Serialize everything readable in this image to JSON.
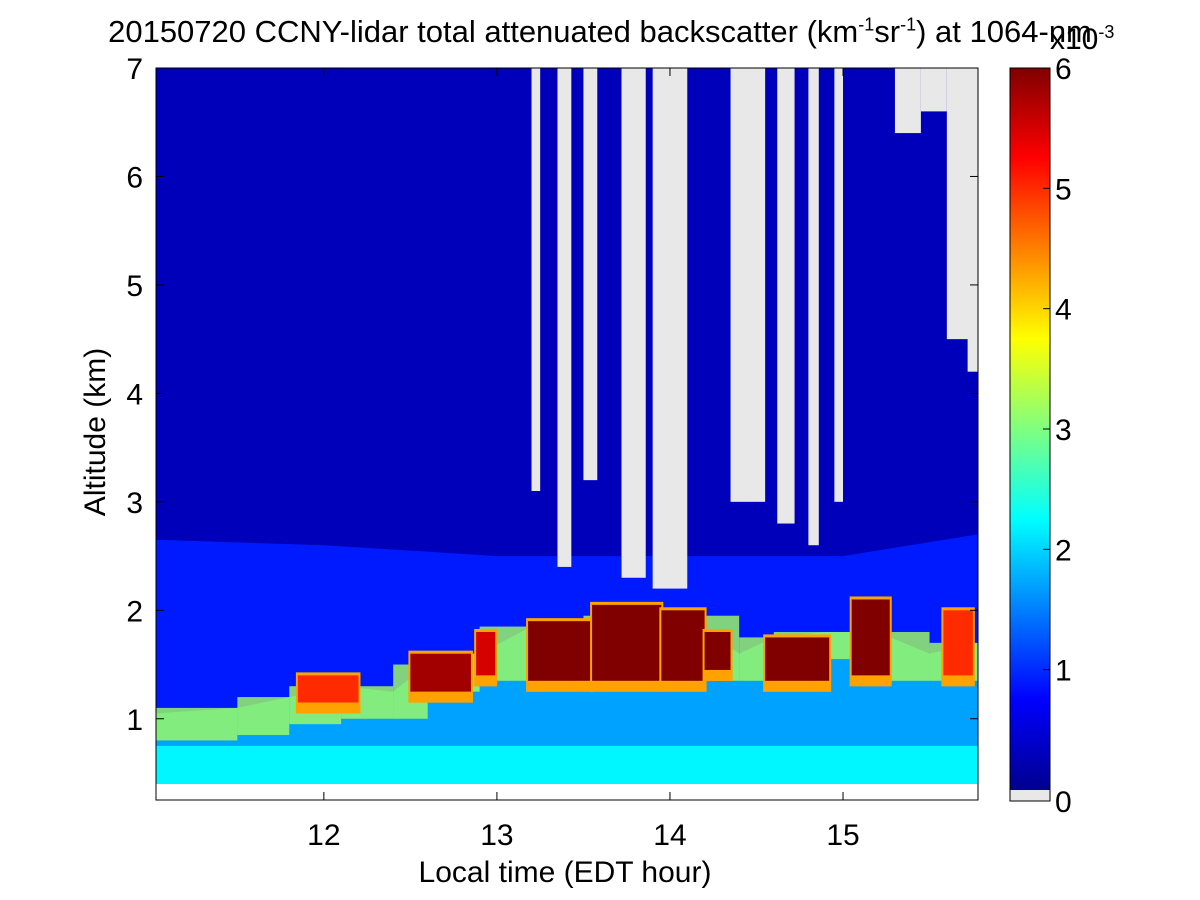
{
  "chart_data": {
    "type": "heatmap",
    "title": {
      "main": "20150720 CCNY-lidar total attenuated backscatter (km",
      "sup1": "-1",
      "mid": "sr",
      "sup2": "-1",
      "end": ") at 1064-nm"
    },
    "xlabel": "Local time (EDT hour)",
    "ylabel": "Altitude (km)",
    "xlim": [
      11.03,
      15.78
    ],
    "ylim": [
      0.38,
      7
    ],
    "x_ticks": [
      "12",
      "13",
      "14",
      "15"
    ],
    "x_tick_values": [
      12,
      13,
      14,
      15
    ],
    "y_ticks": [
      "1",
      "2",
      "3",
      "4",
      "5",
      "6",
      "7"
    ],
    "y_tick_values": [
      1,
      2,
      3,
      4,
      5,
      6,
      7
    ],
    "colorbar": {
      "ticks": [
        "0",
        "1",
        "2",
        "3",
        "4",
        "5",
        "6"
      ],
      "tick_values": [
        0,
        1,
        2,
        3,
        4,
        5,
        6
      ],
      "range": [
        0,
        6
      ],
      "exponent_base": "x10",
      "exponent_power": "-3",
      "colormap": "jet",
      "no_data_color": "#e8e8e8"
    },
    "layers": {
      "near_surface_value": 2.2,
      "boundary_layer_top_km": [
        {
          "x": 11.03,
          "y": 1.05
        },
        {
          "x": 11.5,
          "y": 1.1
        },
        {
          "x": 11.8,
          "y": 1.2
        },
        {
          "x": 12.1,
          "y": 1.3
        },
        {
          "x": 12.4,
          "y": 1.25
        },
        {
          "x": 12.6,
          "y": 1.5
        },
        {
          "x": 12.9,
          "y": 1.6
        },
        {
          "x": 13.2,
          "y": 1.85
        },
        {
          "x": 13.5,
          "y": 1.85
        },
        {
          "x": 13.8,
          "y": 1.95
        },
        {
          "x": 14.1,
          "y": 1.95
        },
        {
          "x": 14.4,
          "y": 1.6
        },
        {
          "x": 14.6,
          "y": 1.75
        },
        {
          "x": 14.9,
          "y": 1.8
        },
        {
          "x": 15.2,
          "y": 1.8
        },
        {
          "x": 15.5,
          "y": 1.6
        },
        {
          "x": 15.78,
          "y": 1.7
        }
      ],
      "aerosol_top_km": [
        {
          "x": 11.03,
          "y": 2.65
        },
        {
          "x": 12.0,
          "y": 2.6
        },
        {
          "x": 13.0,
          "y": 2.5
        },
        {
          "x": 14.0,
          "y": 2.5
        },
        {
          "x": 15.0,
          "y": 2.5
        },
        {
          "x": 15.78,
          "y": 2.7
        }
      ],
      "cloud_blocks": [
        {
          "x0": 11.85,
          "x1": 12.2,
          "y0": 1.15,
          "y1": 1.4,
          "value": 5.0
        },
        {
          "x0": 12.5,
          "x1": 12.85,
          "y0": 1.25,
          "y1": 1.6,
          "value": 5.8
        },
        {
          "x0": 12.88,
          "x1": 12.99,
          "y0": 1.4,
          "y1": 1.8,
          "value": 5.5
        },
        {
          "x0": 13.18,
          "x1": 13.55,
          "y0": 1.35,
          "y1": 1.9,
          "value": 6.0
        },
        {
          "x0": 13.55,
          "x1": 13.95,
          "y0": 1.35,
          "y1": 2.05,
          "value": 6.0
        },
        {
          "x0": 13.95,
          "x1": 14.2,
          "y0": 1.35,
          "y1": 2.0,
          "value": 6.0
        },
        {
          "x0": 14.2,
          "x1": 14.35,
          "y0": 1.45,
          "y1": 1.8,
          "value": 6.0
        },
        {
          "x0": 14.55,
          "x1": 14.92,
          "y0": 1.35,
          "y1": 1.75,
          "value": 6.0
        },
        {
          "x0": 15.05,
          "x1": 15.27,
          "y0": 1.4,
          "y1": 2.1,
          "value": 6.0
        },
        {
          "x0": 15.58,
          "x1": 15.75,
          "y0": 1.4,
          "y1": 2.0,
          "value": 5.0
        }
      ],
      "clear_sky_gaps": [
        {
          "x0": 13.2,
          "x1": 13.25,
          "y0": 3.1,
          "y1": 7.0
        },
        {
          "x0": 13.35,
          "x1": 13.43,
          "y0": 2.4,
          "y1": 7.0
        },
        {
          "x0": 13.5,
          "x1": 13.58,
          "y0": 3.2,
          "y1": 7.0
        },
        {
          "x0": 13.72,
          "x1": 13.86,
          "y0": 2.3,
          "y1": 7.0
        },
        {
          "x0": 13.9,
          "x1": 14.1,
          "y0": 2.2,
          "y1": 7.0
        },
        {
          "x0": 14.35,
          "x1": 14.55,
          "y0": 3.0,
          "y1": 7.0
        },
        {
          "x0": 14.62,
          "x1": 14.72,
          "y0": 2.8,
          "y1": 7.0
        },
        {
          "x0": 14.8,
          "x1": 14.86,
          "y0": 2.6,
          "y1": 7.0
        },
        {
          "x0": 14.95,
          "x1": 15.0,
          "y0": 3.0,
          "y1": 7.0
        },
        {
          "x0": 15.3,
          "x1": 15.45,
          "y0": 6.4,
          "y1": 7.0
        },
        {
          "x0": 15.45,
          "x1": 15.6,
          "y0": 6.6,
          "y1": 7.0
        },
        {
          "x0": 15.6,
          "x1": 15.75,
          "y0": 4.5,
          "y1": 7.0
        },
        {
          "x0": 15.72,
          "x1": 15.78,
          "y0": 4.2,
          "y1": 7.0
        }
      ]
    }
  }
}
